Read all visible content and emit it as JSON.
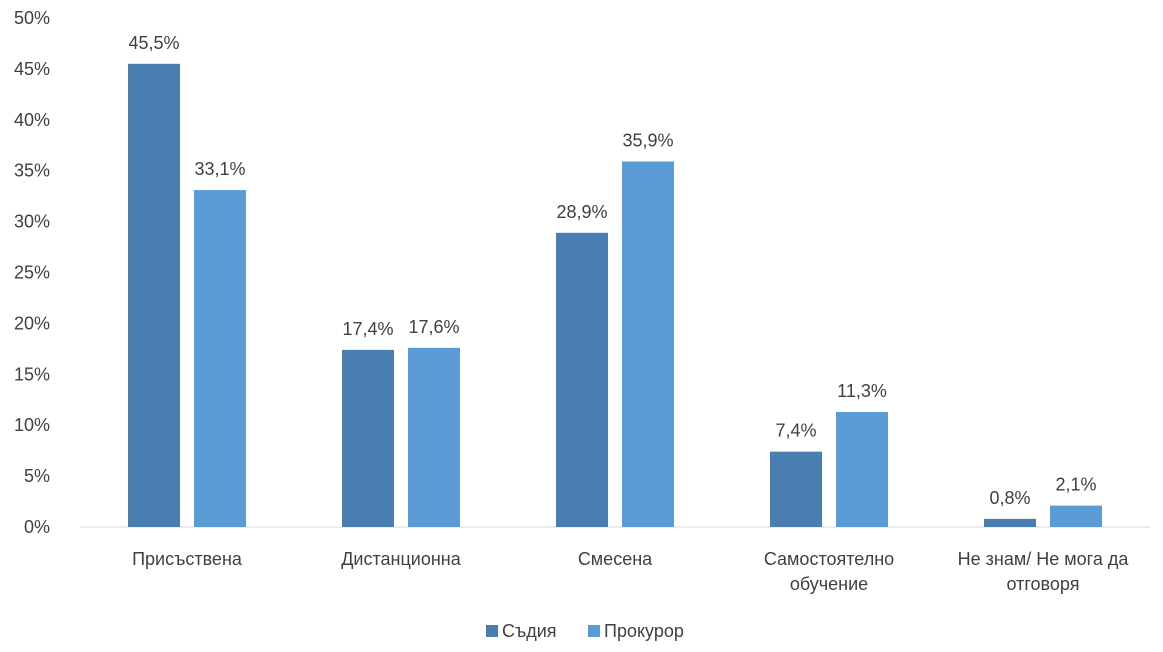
{
  "chart_data": {
    "type": "bar",
    "categories": [
      [
        "Присъствена"
      ],
      [
        "Дистанционна"
      ],
      [
        "Смесена"
      ],
      [
        "Самостоятелно",
        "обучение"
      ],
      [
        "Не знам/ Не мога да",
        "отговоря"
      ]
    ],
    "series": [
      {
        "name": "Съдия",
        "color": "#4a7eb0",
        "values": [
          45.5,
          17.4,
          28.9,
          7.4,
          0.8
        ],
        "labels": [
          "45,5%",
          "17,4%",
          "28,9%",
          "7,4%",
          "0,8%"
        ]
      },
      {
        "name": "Прокурор",
        "color": "#5b9bd5",
        "values": [
          33.1,
          17.6,
          35.9,
          11.3,
          2.1
        ],
        "labels": [
          "33,1%",
          "17,6%",
          "35,9%",
          "11,3%",
          "2,1%"
        ]
      }
    ],
    "y_ticks": [
      "0%",
      "5%",
      "10%",
      "15%",
      "20%",
      "25%",
      "30%",
      "35%",
      "40%",
      "45%",
      "50%"
    ],
    "ylim": [
      0,
      50
    ],
    "grid": false,
    "legend_position": "bottom",
    "axis_line_color": "#d9d9d9"
  }
}
